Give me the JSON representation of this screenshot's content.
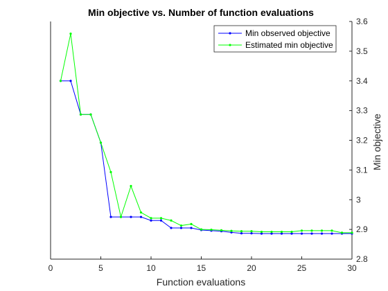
{
  "chart_data": {
    "type": "line",
    "title": "Min objective vs. Number of function evaluations",
    "xlabel": "Function evaluations",
    "ylabel": "Min objective",
    "xlim": [
      0,
      30
    ],
    "ylim": [
      2.8,
      3.6
    ],
    "xticks": [
      0,
      5,
      10,
      15,
      20,
      25,
      30
    ],
    "yticks": [
      2.8,
      2.9,
      3.0,
      3.1,
      3.2,
      3.3,
      3.4,
      3.5,
      3.6
    ],
    "xtick_labels": [
      "0",
      "5",
      "10",
      "15",
      "20",
      "25",
      "30"
    ],
    "ytick_labels": [
      "2.8",
      "2.9",
      "3",
      "3.1",
      "3.2",
      "3.3",
      "3.4",
      "3.5",
      "3.6"
    ],
    "grid": false,
    "legend_position": "top-right",
    "x": [
      1,
      2,
      3,
      4,
      5,
      6,
      7,
      8,
      9,
      10,
      11,
      12,
      13,
      14,
      15,
      16,
      17,
      18,
      19,
      20,
      21,
      22,
      23,
      24,
      25,
      26,
      27,
      28,
      29,
      30
    ],
    "series": [
      {
        "name": "Min observed objective",
        "color": "#0000ff",
        "values": [
          3.4,
          3.4,
          3.287,
          3.287,
          3.192,
          2.942,
          2.942,
          2.942,
          2.942,
          2.93,
          2.93,
          2.905,
          2.905,
          2.905,
          2.898,
          2.896,
          2.894,
          2.89,
          2.887,
          2.887,
          2.886,
          2.886,
          2.886,
          2.886,
          2.886,
          2.886,
          2.886,
          2.886,
          2.886,
          2.886
        ]
      },
      {
        "name": "Estimated min objective",
        "color": "#00ff00",
        "values": [
          3.4,
          3.559,
          3.287,
          3.287,
          3.192,
          3.093,
          2.942,
          3.046,
          2.957,
          2.938,
          2.938,
          2.93,
          2.913,
          2.918,
          2.9,
          2.899,
          2.897,
          2.895,
          2.894,
          2.894,
          2.892,
          2.892,
          2.892,
          2.892,
          2.896,
          2.896,
          2.896,
          2.896,
          2.889,
          2.889
        ]
      }
    ]
  }
}
